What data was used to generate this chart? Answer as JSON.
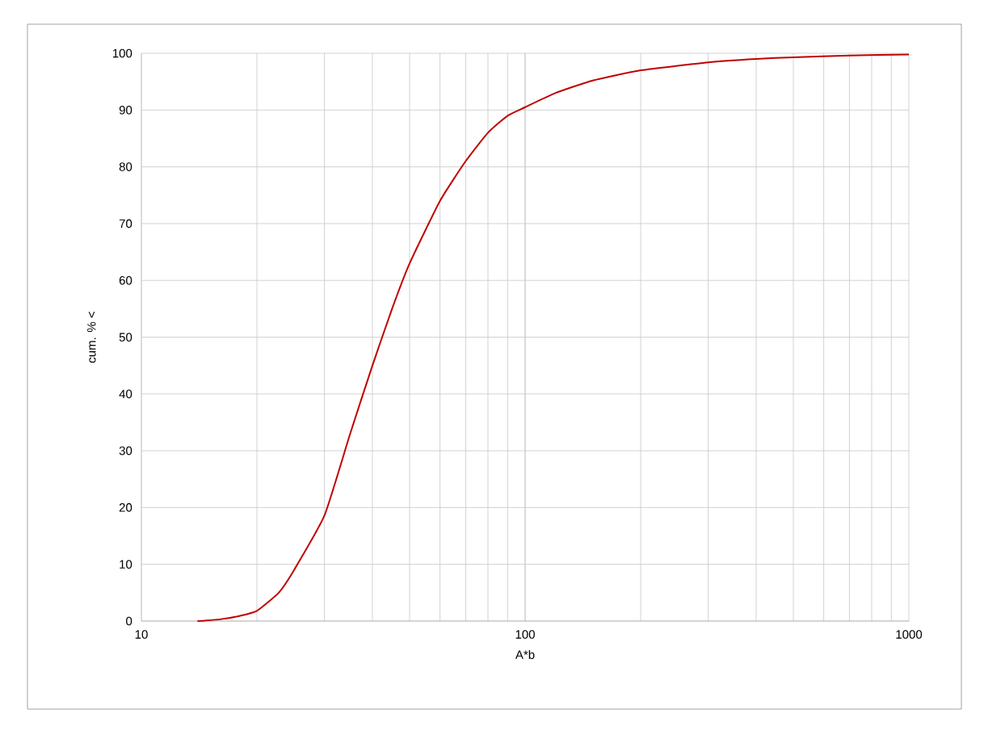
{
  "chart_data": {
    "type": "line",
    "xlabel": "A*b",
    "ylabel": "cum. % <",
    "x": [
      14,
      16,
      18,
      20,
      22.8,
      25,
      30,
      35,
      40,
      45,
      50,
      60,
      70,
      80,
      90,
      100,
      120,
      150,
      200,
      300,
      400,
      500,
      700,
      1000
    ],
    "series": [
      {
        "color": "#c00000",
        "values": [
          0,
          0.3,
          0.9,
          1.8,
          5,
          9,
          18.6,
          33,
          45,
          55,
          63,
          74,
          81,
          86,
          89,
          90.5,
          93,
          95.2,
          97,
          98.4,
          99,
          99.3,
          99.6,
          99.8
        ]
      }
    ],
    "log": "x",
    "xlim": [
      10,
      1000
    ],
    "xticks": [
      10,
      100,
      1000
    ],
    "ylim": [
      0,
      100
    ],
    "yticks": [
      0,
      10,
      20,
      30,
      40,
      50,
      60,
      70,
      80,
      90,
      100
    ],
    "grid": true,
    "legend": false,
    "marker": "none",
    "line_style": "solid"
  }
}
